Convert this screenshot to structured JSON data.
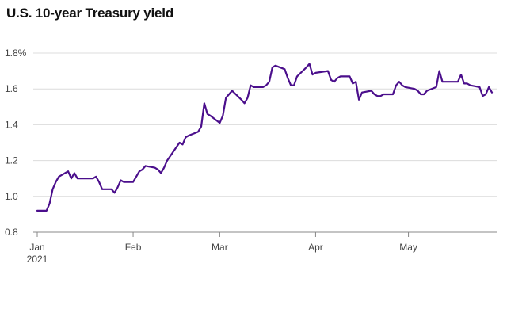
{
  "chart_data": {
    "type": "line",
    "title": "U.S. 10-year Treasury yield",
    "xlabel": "",
    "ylabel": "",
    "ylim": [
      0.8,
      1.8
    ],
    "yticks": [
      {
        "value": 1.8,
        "label": "1.8%"
      },
      {
        "value": 1.6,
        "label": "1.6"
      },
      {
        "value": 1.4,
        "label": "1.4"
      },
      {
        "value": 1.2,
        "label": "1.2"
      },
      {
        "value": 1.0,
        "label": "1.0"
      },
      {
        "value": 0.8,
        "label": "0.8"
      }
    ],
    "xlim": [
      "2021-01-01",
      "2021-05-28"
    ],
    "xticks": [
      {
        "date": "2021-01-01",
        "label": "Jan"
      },
      {
        "date": "2021-02-01",
        "label": "Feb"
      },
      {
        "date": "2021-03-01",
        "label": "Mar"
      },
      {
        "date": "2021-04-01",
        "label": "Apr"
      },
      {
        "date": "2021-05-01",
        "label": "May"
      }
    ],
    "xtick_sublabel": "2021",
    "grid": true,
    "line_color": "#4b0f8c",
    "series": [
      {
        "x": [
          "2021-01-01",
          "2021-01-04",
          "2021-01-05",
          "2021-01-06",
          "2021-01-07",
          "2021-01-08",
          "2021-01-11",
          "2021-01-12",
          "2021-01-13",
          "2021-01-14",
          "2021-01-15",
          "2021-01-19",
          "2021-01-20",
          "2021-01-21",
          "2021-01-22",
          "2021-01-25",
          "2021-01-26",
          "2021-01-27",
          "2021-01-28",
          "2021-01-29",
          "2021-02-01",
          "2021-02-02",
          "2021-02-03",
          "2021-02-04",
          "2021-02-05",
          "2021-02-08",
          "2021-02-09",
          "2021-02-10",
          "2021-02-11",
          "2021-02-12",
          "2021-02-16",
          "2021-02-17",
          "2021-02-18",
          "2021-02-19",
          "2021-02-22",
          "2021-02-23",
          "2021-02-24",
          "2021-02-25",
          "2021-02-26",
          "2021-03-01",
          "2021-03-02",
          "2021-03-03",
          "2021-03-04",
          "2021-03-05",
          "2021-03-08",
          "2021-03-09",
          "2021-03-10",
          "2021-03-11",
          "2021-03-12",
          "2021-03-15",
          "2021-03-16",
          "2021-03-17",
          "2021-03-18",
          "2021-03-19",
          "2021-03-22",
          "2021-03-23",
          "2021-03-24",
          "2021-03-25",
          "2021-03-26",
          "2021-03-29",
          "2021-03-30",
          "2021-03-31",
          "2021-04-01",
          "2021-04-05",
          "2021-04-06",
          "2021-04-07",
          "2021-04-08",
          "2021-04-09",
          "2021-04-12",
          "2021-04-13",
          "2021-04-14",
          "2021-04-15",
          "2021-04-16",
          "2021-04-19",
          "2021-04-20",
          "2021-04-21",
          "2021-04-22",
          "2021-04-23",
          "2021-04-26",
          "2021-04-27",
          "2021-04-28",
          "2021-04-29",
          "2021-04-30",
          "2021-05-03",
          "2021-05-04",
          "2021-05-05",
          "2021-05-06",
          "2021-05-07",
          "2021-05-10",
          "2021-05-11",
          "2021-05-12",
          "2021-05-13",
          "2021-05-14",
          "2021-05-17",
          "2021-05-18",
          "2021-05-19",
          "2021-05-20",
          "2021-05-21",
          "2021-05-24",
          "2021-05-25",
          "2021-05-26",
          "2021-05-27",
          "2021-05-28"
        ],
        "y": [
          0.92,
          0.92,
          0.96,
          1.04,
          1.08,
          1.11,
          1.14,
          1.1,
          1.13,
          1.1,
          1.1,
          1.1,
          1.11,
          1.08,
          1.04,
          1.04,
          1.02,
          1.05,
          1.09,
          1.08,
          1.08,
          1.11,
          1.14,
          1.15,
          1.17,
          1.16,
          1.15,
          1.13,
          1.16,
          1.2,
          1.3,
          1.29,
          1.33,
          1.34,
          1.36,
          1.39,
          1.52,
          1.46,
          1.45,
          1.41,
          1.45,
          1.55,
          1.57,
          1.59,
          1.54,
          1.52,
          1.55,
          1.62,
          1.61,
          1.61,
          1.62,
          1.64,
          1.72,
          1.73,
          1.71,
          1.66,
          1.62,
          1.62,
          1.67,
          1.72,
          1.74,
          1.68,
          1.69,
          1.7,
          1.65,
          1.64,
          1.66,
          1.67,
          1.67,
          1.63,
          1.64,
          1.54,
          1.58,
          1.59,
          1.57,
          1.56,
          1.56,
          1.57,
          1.57,
          1.62,
          1.64,
          1.62,
          1.61,
          1.6,
          1.59,
          1.57,
          1.57,
          1.59,
          1.61,
          1.7,
          1.64,
          1.64,
          1.64,
          1.64,
          1.68,
          1.63,
          1.63,
          1.62,
          1.61,
          1.56,
          1.57,
          1.61,
          1.58
        ]
      }
    ]
  }
}
